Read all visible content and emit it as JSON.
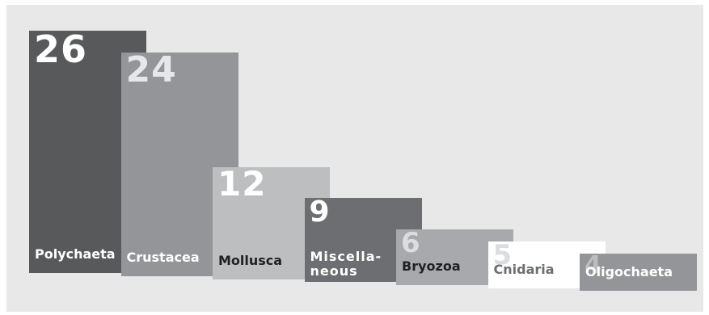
{
  "chart_data": {
    "type": "bar",
    "categories": [
      "Polychaeta",
      "Crustacea",
      "Mollusca",
      "Miscella-\nneous",
      "Bryozoa",
      "Cnidaria",
      "Oligochaeta"
    ],
    "values": [
      26,
      24,
      12,
      9,
      6,
      5,
      4
    ],
    "colors": [
      "#58595b",
      "#939598",
      "#bcbec0",
      "#6d6e71",
      "#a7a9ac",
      "#ffffff",
      "#939598"
    ],
    "label_colors": [
      "#ffffff",
      "#ffffff",
      "#231f20",
      "#ffffff",
      "#231f20",
      "#6d6e71",
      "#ffffff"
    ],
    "value_colors": [
      "#ffffff",
      "#e6e7e8",
      "#ffffff",
      "#ffffff",
      "#dcdddf",
      "#dcdddf",
      "#bcbec0"
    ],
    "background": "#e8e8e8",
    "title": "",
    "xlabel": "",
    "ylabel": ""
  }
}
